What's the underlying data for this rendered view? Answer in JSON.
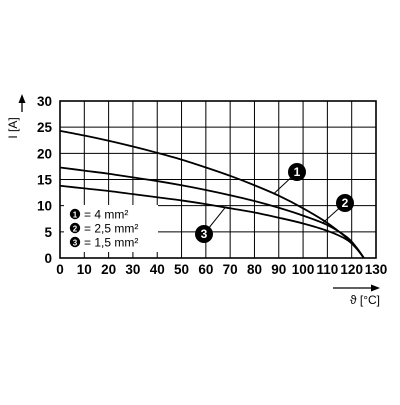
{
  "chart_data": {
    "type": "line",
    "xlabel": "ϑ [°C]",
    "ylabel": "I [A]",
    "xlim": [
      0,
      130
    ],
    "ylim": [
      0,
      30
    ],
    "x_ticks": [
      "0",
      "10",
      "20",
      "30",
      "40",
      "50",
      "60",
      "70",
      "80",
      "90",
      "100",
      "110",
      "120",
      "130"
    ],
    "y_ticks": [
      "0",
      "5",
      "10",
      "15",
      "20",
      "25",
      "30"
    ],
    "grid": true,
    "legend_position": "bottom-left",
    "line_color": "#000000",
    "series": [
      {
        "name": "4 mm²",
        "marker": "1",
        "legend_text": "= 4 mm²",
        "points": [
          [
            0,
            24.3
          ],
          [
            10,
            23.4
          ],
          [
            20,
            22.4
          ],
          [
            30,
            21.3
          ],
          [
            40,
            20.1
          ],
          [
            50,
            18.8
          ],
          [
            60,
            17.3
          ],
          [
            70,
            15.7
          ],
          [
            80,
            13.9
          ],
          [
            90,
            11.9
          ],
          [
            100,
            9.5
          ],
          [
            110,
            6.7
          ],
          [
            118,
            3.8
          ],
          [
            122,
            1.9
          ],
          [
            125,
            0
          ]
        ]
      },
      {
        "name": "2,5 mm²",
        "marker": "2",
        "legend_text": "= 2,5 mm²",
        "points": [
          [
            0,
            17.3
          ],
          [
            10,
            16.7
          ],
          [
            20,
            16.1
          ],
          [
            30,
            15.4
          ],
          [
            40,
            14.7
          ],
          [
            50,
            13.9
          ],
          [
            60,
            13.0
          ],
          [
            70,
            12.0
          ],
          [
            80,
            10.9
          ],
          [
            90,
            9.6
          ],
          [
            100,
            8.1
          ],
          [
            110,
            6.3
          ],
          [
            118,
            4.0
          ],
          [
            122,
            2.0
          ],
          [
            125,
            0
          ]
        ]
      },
      {
        "name": "1,5 mm²",
        "marker": "3",
        "legend_text": "= 1,5 mm²",
        "points": [
          [
            0,
            13.8
          ],
          [
            10,
            13.3
          ],
          [
            20,
            12.8
          ],
          [
            30,
            12.2
          ],
          [
            40,
            11.6
          ],
          [
            50,
            11.0
          ],
          [
            60,
            10.3
          ],
          [
            70,
            9.5
          ],
          [
            80,
            8.7
          ],
          [
            90,
            7.7
          ],
          [
            100,
            6.6
          ],
          [
            110,
            5.2
          ],
          [
            118,
            3.5
          ],
          [
            122,
            1.8
          ],
          [
            125,
            0
          ]
        ]
      }
    ],
    "annotations": [
      {
        "marker": "1",
        "series": "4 mm²",
        "at_x": 88
      },
      {
        "marker": "2",
        "series": "2,5 mm²",
        "at_x": 108
      },
      {
        "marker": "3",
        "series": "1,5 mm²",
        "at_x": 68
      }
    ]
  }
}
